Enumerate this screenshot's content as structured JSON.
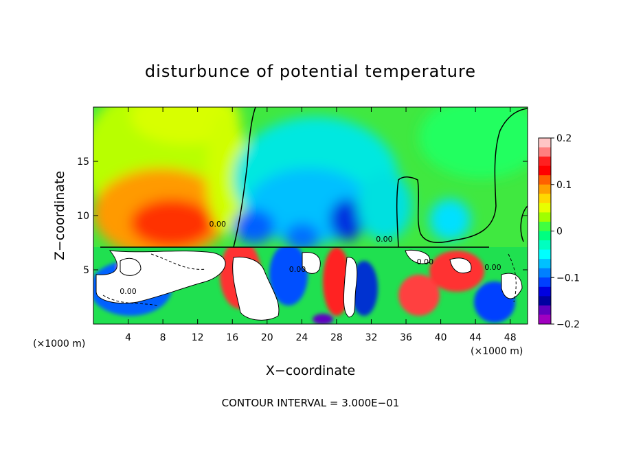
{
  "chart_data": {
    "type": "heatmap",
    "title": "disturbunce of potential temperature",
    "xlabel": "X−coordinate",
    "ylabel": "Z−coordinate",
    "x_unit_label": "(×1000 m)",
    "x_unit_label_right": "(×1000 m)",
    "footer": "CONTOUR INTERVAL = 3.000E−01",
    "xlim": [
      0,
      50
    ],
    "ylim": [
      0,
      20
    ],
    "x_ticks": [
      4,
      8,
      12,
      16,
      20,
      24,
      28,
      32,
      36,
      40,
      44,
      48
    ],
    "y_ticks": [
      5,
      10,
      15
    ],
    "colorbar": {
      "min": -0.2,
      "max": 0.2,
      "tick_values": [
        0.2,
        0.1,
        0,
        -0.1,
        -0.2
      ],
      "tick_labels": [
        "0.2",
        "0.1",
        "0",
        "−0.1",
        "−0.2"
      ],
      "colors": [
        "#ffc6c6",
        "#ff8080",
        "#ff2020",
        "#ff0000",
        "#ff6000",
        "#ffa000",
        "#ffd800",
        "#e8ff00",
        "#a0ff00",
        "#40ff40",
        "#00ff80",
        "#00ffc0",
        "#00ffff",
        "#00c0ff",
        "#0080ff",
        "#0040ff",
        "#0000e0",
        "#0000a0",
        "#6000c0",
        "#a000c0"
      ]
    },
    "contour_labels": [
      {
        "text": "0.00",
        "x": 14.3,
        "z": 9.0
      },
      {
        "text": "0.00",
        "x": 4.0,
        "z": 2.8
      },
      {
        "text": "0.00",
        "x": 23.5,
        "z": 4.8
      },
      {
        "text": "0.00",
        "x": 33.5,
        "z": 7.6
      },
      {
        "text": "0.00",
        "x": 38.2,
        "z": 5.5
      },
      {
        "text": "0.00",
        "x": 46.0,
        "z": 5.0
      }
    ],
    "background_value": 0.0
  }
}
